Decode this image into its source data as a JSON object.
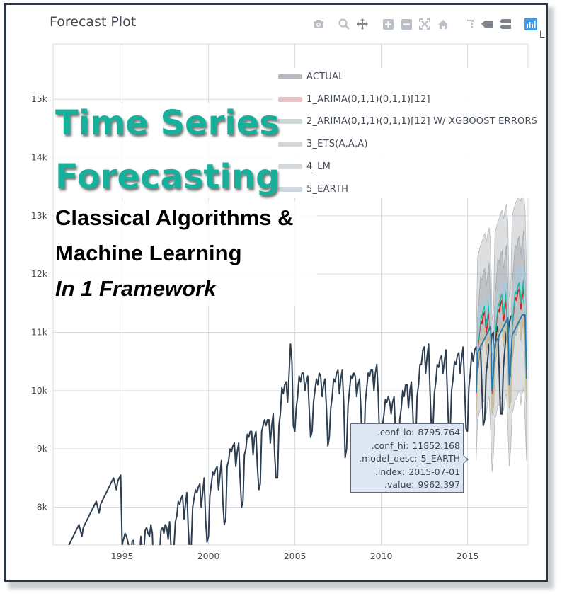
{
  "title": "Forecast Plot",
  "modebar": {
    "icons": [
      "camera-icon",
      "zoom-icon",
      "pan-icon",
      "zoom-in-icon",
      "zoom-out-icon",
      "autoscale-icon",
      "reset-axes-icon",
      "spike-lines-icon",
      "hover-closest-icon",
      "hover-compare-icon",
      "plotly-logo-icon"
    ],
    "trailing_text": "L"
  },
  "banner": {
    "line1": "Time Series",
    "line2": "Forecasting",
    "sub1": "Classical Algorithms &",
    "sub2": "Machine Learning",
    "sub3": "In 1 Framework"
  },
  "hover": {
    "rows": [
      {
        "key": ".conf_lo:",
        "value": "8795.764"
      },
      {
        "key": ".conf_hi:",
        "value": "11852.168"
      },
      {
        "key": ".model_desc:",
        "value": "5_EARTH"
      },
      {
        "key": ".index:",
        "value": "2015-07-01"
      },
      {
        "key": ".value:",
        "value": "9962.397"
      }
    ]
  },
  "chart_data": {
    "type": "line",
    "title": "Forecast Plot",
    "xlabel": "",
    "ylabel": "",
    "xlim": [
      1991.0,
      2018.5
    ],
    "ylim": [
      7350,
      15950
    ],
    "x_ticks": [
      1995,
      2000,
      2005,
      2010,
      2015
    ],
    "x_tick_labels": [
      "1995",
      "2000",
      "2005",
      "2010",
      "2015"
    ],
    "y_ticks": [
      8000,
      9000,
      10000,
      11000,
      12000,
      13000,
      14000,
      15000
    ],
    "y_tick_labels": [
      "8k",
      "9k",
      "10k",
      "11k",
      "12k",
      "13k",
      "14k",
      "15k"
    ],
    "grid": true,
    "legend_position": "top-right",
    "colors": {
      "actual": "#2c3e50",
      "arima": "#e31a1c",
      "arima_xgb": "#18bc9c",
      "ets": "#ccbe93",
      "lm": "#a6cee3",
      "earth": "#1f78b4",
      "band": "#9aa0a6"
    },
    "legend": [
      {
        "name": "ACTUAL",
        "color": "#2c3e50"
      },
      {
        "name": "1_ARIMA(0,1,1)(0,1,1)[12]",
        "color": "#e31a1c"
      },
      {
        "name": "2_ARIMA(0,1,1)(0,1,1)[12] W/ XGBOOST ERRORS",
        "color": "#18bc9c"
      },
      {
        "name": "3_ETS(A,A,A)",
        "color": "#ccbe93"
      },
      {
        "name": "4_LM",
        "color": "#a6cee3"
      },
      {
        "name": "5_EARTH",
        "color": "#1f78b4"
      }
    ],
    "actual": {
      "name": "ACTUAL",
      "x_start": 1991.0,
      "step_years": 0.0833,
      "values": [
        6900,
        6950,
        7050,
        7100,
        7150,
        7200,
        7250,
        7200,
        7150,
        7250,
        7300,
        7350,
        7400,
        7450,
        7500,
        7550,
        7600,
        7650,
        7700,
        7600,
        7500,
        7650,
        7700,
        7750,
        7800,
        7850,
        7900,
        7950,
        8000,
        8050,
        8100,
        8000,
        7900,
        8050,
        8100,
        8150,
        8200,
        8250,
        8300,
        8350,
        8400,
        8450,
        8500,
        8400,
        8300,
        8450,
        8500,
        8550,
        7350,
        7450,
        7550,
        7500,
        7400,
        7300,
        7200,
        7420,
        7430,
        7100,
        6900,
        7000,
        7100,
        7500,
        7300,
        7200,
        7600,
        7650,
        7550,
        7500,
        7700,
        7550,
        6900,
        6800,
        6950,
        7100,
        7200,
        7600,
        7650,
        7550,
        7700,
        7650,
        7450,
        7750,
        7300,
        7200,
        7300,
        7750,
        7850,
        8100,
        8050,
        8150,
        8200,
        7800,
        8050,
        8250,
        7600,
        7200,
        7300,
        8000,
        8150,
        8300,
        8250,
        8350,
        8400,
        8000,
        8250,
        8500,
        7800,
        7400,
        7500,
        8200,
        8400,
        8600,
        8550,
        8650,
        8700,
        8300,
        8550,
        8800,
        8100,
        7700,
        7800,
        8700,
        8800,
        9000,
        8950,
        9050,
        9100,
        8700,
        8950,
        9100,
        8500,
        8000,
        8100,
        8900,
        9000,
        9250,
        9200,
        9300,
        9300,
        8900,
        9200,
        9300,
        8700,
        8300,
        8400,
        9300,
        9400,
        9500,
        9400,
        9500,
        9500,
        9100,
        9400,
        9600,
        8900,
        8500,
        8500,
        9400,
        9600,
        10050,
        9950,
        10100,
        10150,
        9800,
        10250,
        10800,
        10500,
        9400,
        9300,
        9700,
        9900,
        10250,
        10150,
        10300,
        10300,
        10000,
        10150,
        10250,
        9700,
        9200,
        9300,
        9800,
        10000,
        10200,
        10100,
        10300,
        10250,
        9900,
        10100,
        10200,
        9700,
        9050,
        9200,
        9700,
        9900,
        10200,
        10150,
        10300,
        10350,
        9950,
        10200,
        10350,
        9800,
        8850,
        9000,
        9750,
        10000,
        10250,
        10200,
        10300,
        10250,
        9900,
        10100,
        10200,
        9650,
        8800,
        8900,
        9800,
        10050,
        10300,
        10250,
        10350,
        10350,
        10000,
        10300,
        10450,
        9950,
        9100,
        8900,
        9400,
        9600,
        9850,
        9800,
        9900,
        9800,
        9600,
        9800,
        9900,
        9300,
        8400,
        8500,
        9500,
        9700,
        10000,
        9900,
        10100,
        10100,
        9700,
        10000,
        10150,
        9650,
        9000,
        9000,
        9900,
        10100,
        10450,
        10450,
        10700,
        10750,
        10300,
        10600,
        10800,
        10000,
        9300,
        9300,
        9950,
        10150,
        10450,
        10400,
        10550,
        10600,
        10300,
        10500,
        10700,
        10000,
        9300,
        9300,
        10000,
        10200,
        10500,
        10450,
        10600,
        10650,
        10300,
        10550,
        10750,
        10100,
        9350,
        9300,
        10050,
        10300,
        10650,
        10500,
        10700,
        10750,
        10300,
        10600,
        10800,
        10100,
        9400,
        9500,
        10300,
        10500,
        10800,
        10700,
        10950,
        11000,
        10600,
        10900,
        11100,
        10400,
        9600,
        9600,
        10400,
        10700,
        11000,
        10900,
        11150,
        11250,
        11300
      ]
    },
    "forecasts": [
      {
        "name": "1_ARIMA(0,1,1)(0,1,1)[12]",
        "color": "#e31a1c",
        "x_start": 2015.5,
        "step_years": 0.0833,
        "values": [
          9900,
          10700,
          10950,
          11200,
          11150,
          11300,
          11350,
          11000,
          11200,
          11400,
          10700,
          9950,
          10100,
          10900,
          11150,
          11400,
          11350,
          11500,
          11550,
          11200,
          11400,
          11600,
          10900,
          10150,
          10300,
          11100,
          11350,
          11600,
          11550,
          11700,
          11750,
          11400,
          11600,
          11800,
          11100,
          10350
        ]
      },
      {
        "name": "2_ARIMA(0,1,1)(0,1,1)[12] W/ XGBOOST ERRORS",
        "color": "#18bc9c",
        "x_start": 2015.5,
        "step_years": 0.0833,
        "values": [
          9950,
          10750,
          11000,
          11300,
          11250,
          11400,
          11450,
          11100,
          11300,
          11500,
          10800,
          10000,
          10150,
          10950,
          11200,
          11500,
          11450,
          11600,
          11650,
          11300,
          11500,
          11700,
          11000,
          10200,
          10350,
          11150,
          11400,
          11700,
          11650,
          11800,
          11850,
          11500,
          11700,
          11900,
          11200,
          10400
        ]
      },
      {
        "name": "3_ETS(A,A,A)",
        "color": "#ccbe93",
        "x_start": 2015.5,
        "step_years": 0.0833,
        "values": [
          9600,
          10400,
          10650,
          10900,
          10850,
          11000,
          11050,
          10700,
          10900,
          11050,
          10400,
          9650,
          9700,
          10500,
          10750,
          11000,
          10950,
          11100,
          11150,
          10800,
          11000,
          11150,
          10500,
          9750,
          9800,
          10600,
          10850,
          11100,
          11050,
          11200,
          11250,
          10900,
          11100,
          11250,
          10600,
          9850
        ]
      },
      {
        "name": "4_LM",
        "color": "#a6cee3",
        "x_start": 2015.5,
        "step_years": 0.0833,
        "values": [
          10050,
          10850,
          11100,
          11450,
          11400,
          11550,
          11600,
          11250,
          11450,
          11650,
          10950,
          10150,
          10300,
          11100,
          11350,
          11700,
          11650,
          11800,
          11850,
          11500,
          11700,
          11900,
          11200,
          10400,
          10550,
          11350,
          11600,
          11950,
          11900,
          12050,
          12100,
          11750,
          11950,
          12150,
          11450,
          10650
        ]
      },
      {
        "name": "5_EARTH",
        "color": "#1f78b4",
        "x_start": 2015.5,
        "step_years": 0.0833,
        "values": [
          9962,
          10650,
          10700,
          10750,
          10800,
          10850,
          10900,
          10950,
          11000,
          11050,
          11100,
          10000,
          10300,
          10800,
          10850,
          10900,
          10950,
          11000,
          11050,
          11100,
          11150,
          11200,
          11250,
          10100,
          10500,
          10950,
          11000,
          11050,
          11100,
          11150,
          11200,
          11250,
          11300,
          11300,
          11300,
          10200
        ]
      }
    ],
    "bands": [
      {
        "name": "outer_band",
        "opacity": 0.35,
        "x_start": 2015.5,
        "step_years": 0.0833,
        "lo": [
          8800,
          9500,
          9600,
          9700,
          9700,
          9800,
          9850,
          9600,
          9800,
          9900,
          9300,
          8600,
          8900,
          9500,
          9600,
          9750,
          9750,
          9850,
          9900,
          9650,
          9850,
          9950,
          9350,
          8700,
          9000,
          9600,
          9700,
          9850,
          9850,
          9950,
          10000,
          9750,
          9950,
          10050,
          9450,
          8800
        ],
        "hi": [
          11000,
          12300,
          12400,
          12500,
          12550,
          12650,
          12700,
          12550,
          12700,
          12800,
          12500,
          11200,
          11400,
          12700,
          12800,
          12900,
          12950,
          13050,
          13100,
          12950,
          13100,
          13200,
          12900,
          11600,
          11800,
          13000,
          13100,
          13200,
          13250,
          13300,
          13350,
          13250,
          13350,
          13400,
          13100,
          12000
        ]
      },
      {
        "name": "inner_band",
        "opacity": 0.45,
        "x_start": 2015.5,
        "step_years": 0.0833,
        "lo": [
          9500,
          10300,
          10500,
          10700,
          10700,
          10850,
          10900,
          10600,
          10800,
          10900,
          10300,
          9600,
          9700,
          10400,
          10600,
          10850,
          10850,
          11000,
          11050,
          10750,
          10950,
          11050,
          10450,
          9700,
          9800,
          10500,
          10700,
          10950,
          10950,
          11100,
          11150,
          10850,
          11050,
          11150,
          10550,
          9800
        ],
        "hi": [
          10500,
          11300,
          11600,
          11950,
          11900,
          12050,
          12100,
          11800,
          12000,
          12200,
          11500,
          10600,
          10700,
          11600,
          11900,
          12250,
          12200,
          12350,
          12400,
          12100,
          12300,
          12500,
          11800,
          10900,
          10950,
          11850,
          12150,
          12500,
          12450,
          12600,
          12650,
          12350,
          12550,
          12750,
          12050,
          11150
        ]
      }
    ]
  }
}
